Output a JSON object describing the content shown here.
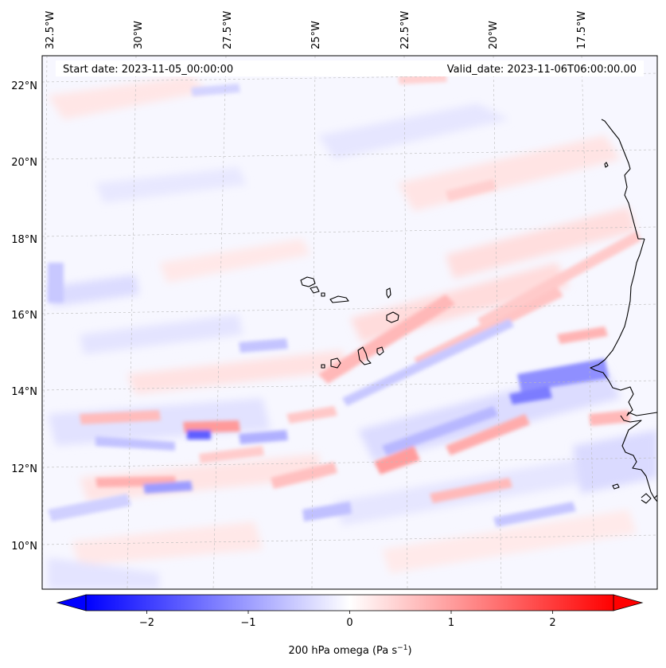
{
  "header": {
    "start_date": "Start date: 2023-11-05_00:00:00",
    "valid_date": "Valid_date: 2023-11-06T06:00:00.00"
  },
  "axes": {
    "top_lon_labels": [
      "32.5°W",
      "30°W",
      "27.5°W",
      "25°W",
      "22.5°W",
      "20°W",
      "17.5°W"
    ],
    "left_lat_labels": [
      "22°N",
      "20°N",
      "18°N",
      "16°N",
      "14°N",
      "12°N",
      "10°N"
    ]
  },
  "colorbar": {
    "title_prefix": "200 hPa omega (Pa s",
    "title_exp": "−1",
    "title_suffix": ")",
    "ticks": [
      "−2",
      "−1",
      "0",
      "1",
      "2"
    ],
    "tick_values": [
      -2,
      -1,
      0,
      1,
      2
    ],
    "range": [
      -2.6,
      2.6
    ],
    "colormap": "bwr",
    "color_low": "#0000ff",
    "color_mid": "#ffffff",
    "color_high": "#ff0000"
  }
}
